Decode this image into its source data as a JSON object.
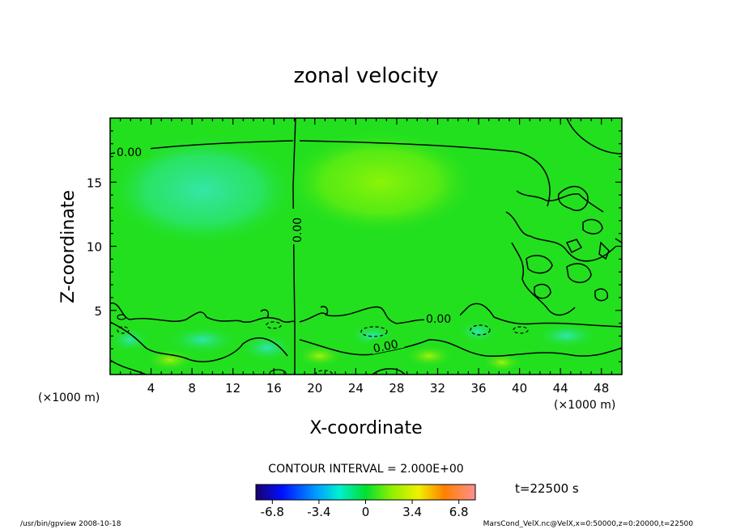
{
  "chart_data": {
    "type": "heatmap",
    "title": "zonal velocity",
    "xlabel": "X-coordinate",
    "ylabel": "Z-coordinate",
    "x_unit": "(×1000 m)",
    "y_unit": "(×1000 m)",
    "xlim": [
      0,
      50
    ],
    "ylim": [
      0,
      20
    ],
    "x_ticks": [
      4,
      8,
      12,
      16,
      20,
      24,
      28,
      32,
      36,
      40,
      44,
      48
    ],
    "y_ticks": [
      5,
      10,
      15
    ],
    "contour_interval": "CONTOUR INTERVAL = 2.000E+00",
    "contour_labels": [
      "0.00",
      "0.00",
      "0.00",
      "0.00"
    ],
    "colorbar": {
      "range": [
        -8,
        8
      ],
      "ticks": [
        "-6.8",
        "-3.4",
        "0",
        "3.4",
        "6.8"
      ],
      "tick_values": [
        -6.8,
        -3.4,
        0,
        3.4,
        6.8
      ]
    },
    "time_label": "t=22500 s",
    "footer_left": "/usr/bin/gpview  2008-10-18",
    "footer_right": "MarsCond_VelX.nc@VelX,x=0:50000,z=0:20000,t=22500",
    "colors": {
      "background_field": "#22e01e",
      "positive": "#84f00a",
      "negative": "#28e6a0"
    }
  }
}
